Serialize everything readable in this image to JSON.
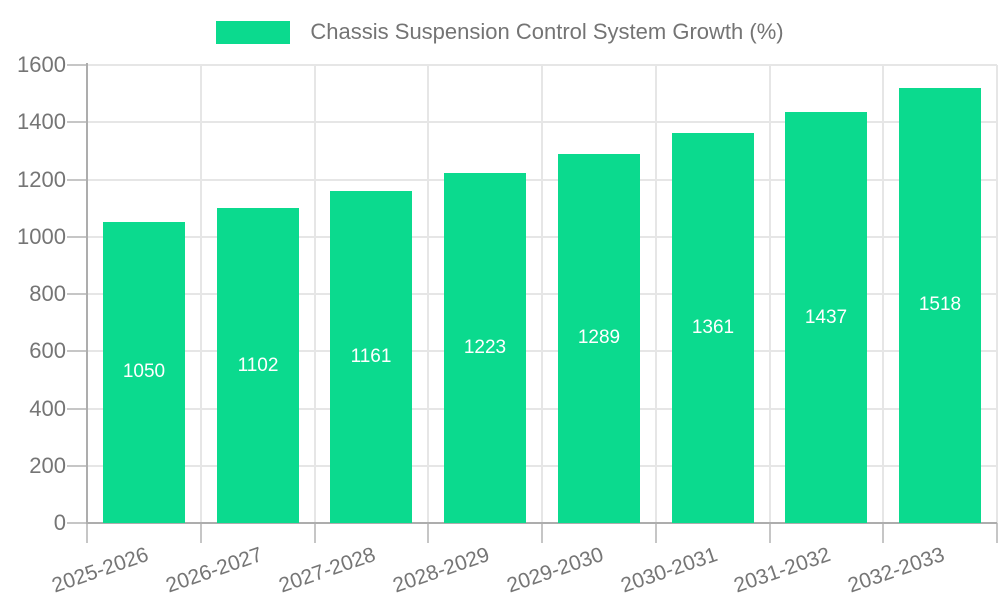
{
  "legend": {
    "label": "Chassis Suspension Control System Growth (%)"
  },
  "chart_data": {
    "type": "bar",
    "title": "Chassis Suspension Control System Growth (%)",
    "categories": [
      "2025-2026",
      "2026-2027",
      "2027-2028",
      "2028-2029",
      "2029-2030",
      "2030-2031",
      "2031-2032",
      "2032-2033"
    ],
    "values": [
      1050,
      1102,
      1161,
      1223,
      1289,
      1361,
      1437,
      1518
    ],
    "xlabel": "",
    "ylabel": "",
    "ylim": [
      0,
      1600
    ],
    "ytick_step": 200,
    "grid": true,
    "legend_position": "top-center",
    "colors": {
      "bar": "#0bda8e",
      "bar_value_label": "#ffffff",
      "grid_line": "#e6e6e6",
      "axis_line": "#adadad",
      "tick_mark": "#c6c6c6",
      "axis_text": "#757575",
      "legend_text": "#747474",
      "background": "#ffffff"
    }
  }
}
